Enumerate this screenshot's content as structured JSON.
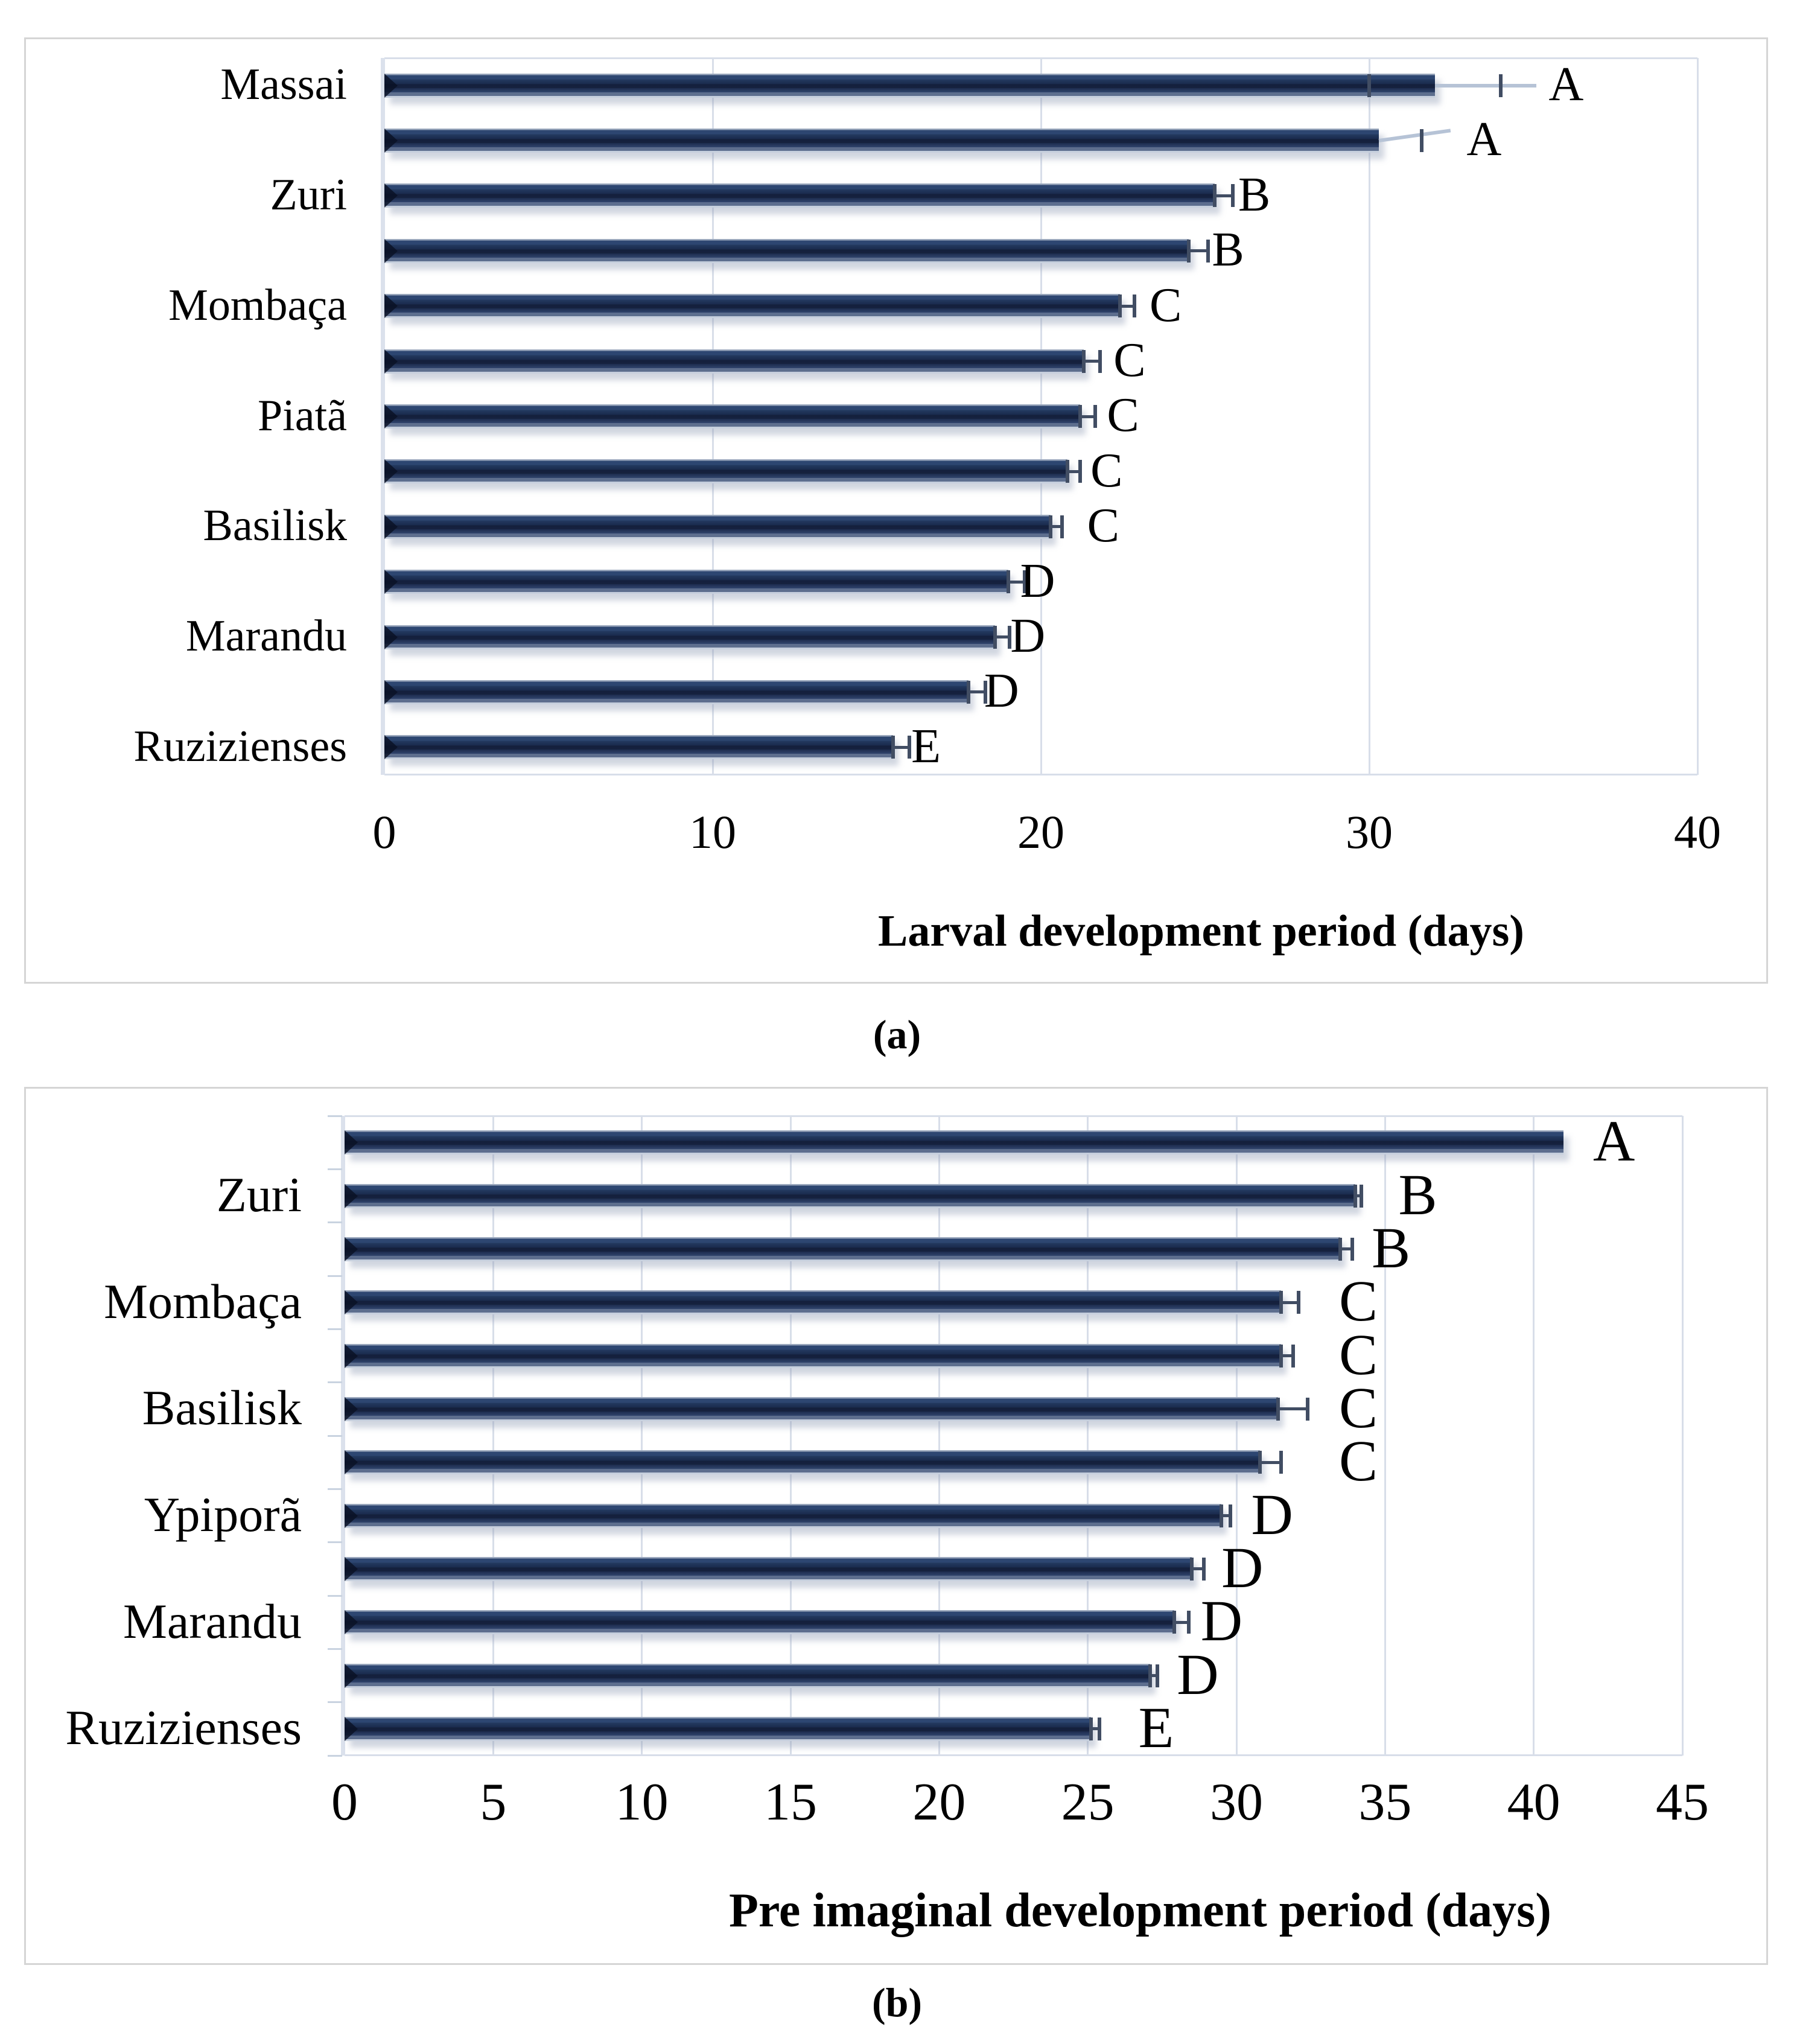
{
  "figure": {
    "caption_a": "(a)",
    "caption_b": "(b)"
  },
  "colors": {
    "bar": "#1f3864",
    "bar_shadow_edge": "#c6cfdd",
    "gridline": "#d8dee9",
    "axis_line": "#dbe1ec",
    "error_bar": "#414d63",
    "leader_line": "#b6c3d6",
    "panel_border": "#d5d5d5",
    "text": "#000000"
  },
  "chart_data": [
    {
      "id": "a",
      "type": "bar",
      "orientation": "horizontal",
      "caption": "(a)",
      "xlabel": "Larval development period (days)",
      "xlim": [
        0,
        40
      ],
      "xticks": [
        0,
        10,
        20,
        30,
        40
      ],
      "grid": true,
      "legend": "none",
      "categories": [
        "Massai",
        "",
        "Zuri",
        "",
        "Mombaça",
        "",
        "Piatã",
        "",
        "Basilisk",
        "",
        "Marandu",
        "",
        "Ruzizienses"
      ],
      "values": [
        32.0,
        30.3,
        25.3,
        24.5,
        22.4,
        21.3,
        21.2,
        20.8,
        20.3,
        19.0,
        18.6,
        17.8,
        15.5
      ],
      "errors": [
        2.0,
        1.3,
        0.55,
        0.6,
        0.45,
        0.5,
        0.45,
        0.4,
        0.35,
        0.5,
        0.45,
        0.5,
        0.5
      ],
      "letters": [
        "A",
        "A",
        "B",
        "B",
        "C",
        "C",
        "C",
        "C",
        "C",
        "D",
        "D",
        "D",
        "E"
      ],
      "letter_x": [
        36.0,
        33.5,
        26.5,
        25.7,
        23.8,
        22.7,
        22.5,
        22.0,
        21.9,
        19.9,
        19.6,
        18.8,
        16.5
      ],
      "leader_lines": [
        {
          "bar": 0,
          "to": 35.1,
          "tilt_deg": 0,
          "minus_cap": true
        },
        {
          "bar": 1,
          "to": 32.5,
          "tilt_deg": -8,
          "minus_cap": false
        }
      ]
    },
    {
      "id": "b",
      "type": "bar",
      "orientation": "horizontal",
      "caption": "(b)",
      "xlabel": "Pre imaginal development period (days)",
      "xlim": [
        0,
        45
      ],
      "xticks": [
        0,
        5,
        10,
        15,
        20,
        25,
        30,
        35,
        40,
        45
      ],
      "grid": true,
      "legend": "none",
      "categories": [
        "",
        "Zuri",
        "",
        "Mombaça",
        "",
        "Basilisk",
        "",
        "Ypiporã",
        "",
        "Marandu",
        "",
        "Ruzizienses"
      ],
      "values": [
        41.0,
        34.0,
        33.5,
        31.5,
        31.5,
        31.4,
        30.8,
        29.5,
        28.5,
        27.9,
        27.1,
        25.1
      ],
      "errors": [
        0,
        0.2,
        0.4,
        0.6,
        0.4,
        1.0,
        0.7,
        0.3,
        0.4,
        0.5,
        0.25,
        0.3
      ],
      "letters": [
        "A",
        "B",
        "B",
        "C",
        "C",
        "C",
        "C",
        "D",
        "D",
        "D",
        "D",
        "E"
      ],
      "letter_x": [
        42.7,
        36.1,
        35.2,
        34.1,
        34.1,
        34.1,
        34.1,
        31.2,
        30.2,
        29.5,
        28.7,
        27.3
      ],
      "leader_lines": []
    }
  ]
}
